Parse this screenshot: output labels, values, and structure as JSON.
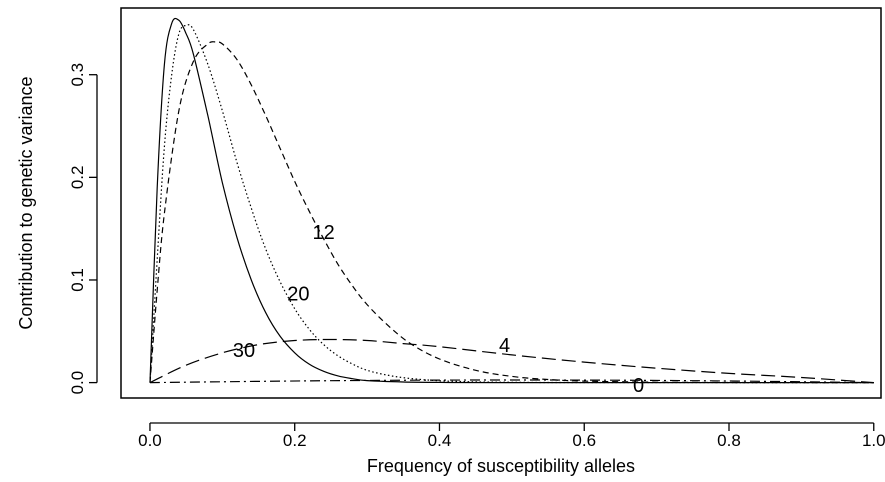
{
  "chart_data": {
    "type": "line",
    "title": "",
    "xlabel": "Frequency of susceptibility alleles",
    "ylabel": "Contribution to genetic variance",
    "xlim": [
      -0.04,
      1.01
    ],
    "ylim": [
      -0.015,
      0.365
    ],
    "grid": false,
    "legend": "none (series labelled directly on curves)",
    "x_ticks": [
      0.0,
      0.2,
      0.4,
      0.6,
      0.8,
      1.0
    ],
    "x_tick_labels": [
      "0.0",
      "0.2",
      "0.4",
      "0.6",
      "0.8",
      "1.0"
    ],
    "y_ticks": [
      0.0,
      0.1,
      0.2,
      0.3
    ],
    "y_tick_labels": [
      "0.0",
      "0.1",
      "0.2",
      "0.3"
    ],
    "series": [
      {
        "name": "30",
        "dash": "solid",
        "label_at": [
          0.13,
          0.03
        ],
        "x": [
          0.0,
          0.01,
          0.02,
          0.03,
          0.04,
          0.05,
          0.06,
          0.08,
          0.1,
          0.12,
          0.14,
          0.16,
          0.18,
          0.2,
          0.22,
          0.24,
          0.26,
          0.28,
          0.3,
          0.35,
          0.4,
          0.5,
          1.0
        ],
        "y": [
          0.0,
          0.19,
          0.31,
          0.35,
          0.353,
          0.34,
          0.32,
          0.26,
          0.195,
          0.142,
          0.1,
          0.068,
          0.045,
          0.029,
          0.018,
          0.011,
          0.0065,
          0.0038,
          0.002,
          0.0006,
          0.0002,
          0.0,
          0.0
        ]
      },
      {
        "name": "20",
        "dash": "dotted",
        "label_at": [
          0.205,
          0.085
        ],
        "x": [
          0.0,
          0.01,
          0.02,
          0.03,
          0.04,
          0.05,
          0.06,
          0.08,
          0.1,
          0.12,
          0.14,
          0.16,
          0.18,
          0.2,
          0.22,
          0.24,
          0.26,
          0.28,
          0.3,
          0.33,
          0.36,
          0.4,
          0.45,
          0.5,
          0.6,
          1.0
        ],
        "y": [
          0.0,
          0.12,
          0.23,
          0.3,
          0.34,
          0.348,
          0.344,
          0.31,
          0.265,
          0.215,
          0.17,
          0.13,
          0.098,
          0.072,
          0.052,
          0.037,
          0.026,
          0.018,
          0.012,
          0.007,
          0.004,
          0.0018,
          0.0007,
          0.0003,
          0.0001,
          0.0
        ]
      },
      {
        "name": "12",
        "dash": "dashed",
        "label_at": [
          0.24,
          0.145
        ],
        "x": [
          0.0,
          0.01,
          0.02,
          0.04,
          0.06,
          0.08,
          0.09,
          0.1,
          0.12,
          0.14,
          0.16,
          0.18,
          0.2,
          0.22,
          0.24,
          0.26,
          0.28,
          0.3,
          0.33,
          0.36,
          0.4,
          0.45,
          0.5,
          0.55,
          0.6,
          0.7,
          0.8,
          1.0
        ],
        "y": [
          0.0,
          0.09,
          0.165,
          0.265,
          0.313,
          0.33,
          0.332,
          0.33,
          0.315,
          0.29,
          0.26,
          0.228,
          0.196,
          0.167,
          0.14,
          0.115,
          0.094,
          0.076,
          0.055,
          0.038,
          0.023,
          0.012,
          0.006,
          0.003,
          0.0015,
          0.0004,
          0.0001,
          0.0
        ]
      },
      {
        "name": "4",
        "dash": "longdash",
        "label_at": [
          0.49,
          0.035
        ],
        "x": [
          0.0,
          0.05,
          0.1,
          0.15,
          0.2,
          0.25,
          0.3,
          0.35,
          0.4,
          0.5,
          0.6,
          0.7,
          0.8,
          0.9,
          1.0
        ],
        "y": [
          0.0,
          0.017,
          0.029,
          0.037,
          0.041,
          0.042,
          0.041,
          0.038,
          0.035,
          0.027,
          0.02,
          0.014,
          0.009,
          0.005,
          0.0
        ]
      },
      {
        "name": "0",
        "dash": "dashdot",
        "label_at": [
          0.675,
          -0.004
        ],
        "x": [
          0.0,
          0.25,
          0.5,
          0.75,
          1.0
        ],
        "y": [
          0.0,
          0.0019,
          0.0025,
          0.0019,
          0.0
        ]
      }
    ]
  }
}
